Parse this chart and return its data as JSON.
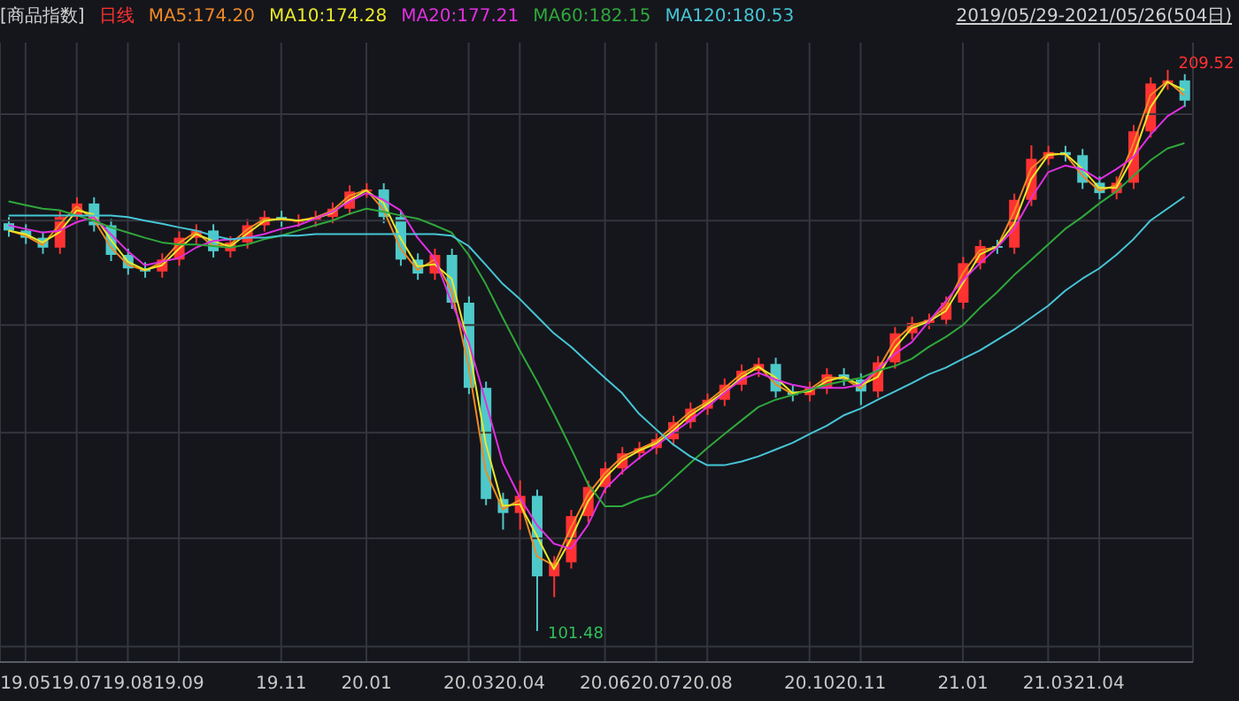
{
  "chart_data": {
    "type": "candlestick",
    "title": "[商品指数]",
    "annotations": [
      "2019/05/29-2021/05/26(504日)"
    ],
    "categories": [
      null,
      "19.05",
      null,
      null,
      "19.07",
      null,
      null,
      "19.08",
      null,
      null,
      "19.09",
      null,
      null,
      null,
      null,
      null,
      "19.11",
      null,
      null,
      null,
      null,
      "20.01",
      null,
      null,
      null,
      null,
      null,
      "20.03",
      null,
      null,
      "20.04",
      null,
      null,
      null,
      null,
      "20.06",
      null,
      null,
      "20.07",
      null,
      null,
      "20.08",
      null,
      null,
      null,
      null,
      null,
      "20.10",
      null,
      null,
      "20.11",
      null,
      null,
      null,
      null,
      null,
      "21.01",
      null,
      null,
      null,
      null,
      "21.03",
      null,
      null,
      "21.04",
      null,
      null,
      null,
      null,
      null
    ],
    "ylim": [
      95.5,
      214.8
    ],
    "yticks": [
      {
        "value": 98.5,
        "label": null
      },
      {
        "value": 119.3,
        "label": null
      },
      {
        "value": 139.7,
        "label": null
      },
      {
        "value": 160.4,
        "label": null
      },
      {
        "value": 180.5,
        "label": null
      },
      {
        "value": 201.0,
        "label": null
      }
    ],
    "tick_labels": "x",
    "grid": true,
    "legend": "top left",
    "series": [
      {
        "type": "candlestick",
        "name": "日线",
        "color": "#ff3232",
        "value_labels": [
          null,
          null,
          null,
          null,
          null,
          null,
          null,
          null,
          null,
          null,
          null,
          null,
          null,
          null,
          null,
          null,
          null,
          null,
          null,
          null,
          null,
          null,
          null,
          null,
          null,
          null,
          null,
          null,
          null,
          null,
          null,
          "101.48",
          null,
          null,
          null,
          null,
          null,
          null,
          null,
          null,
          null,
          null,
          null,
          null,
          null,
          null,
          null,
          null,
          null,
          null,
          null,
          null,
          null,
          null,
          null,
          null,
          null,
          null,
          null,
          null,
          null,
          null,
          null,
          null,
          null,
          null,
          null,
          null,
          "209.52",
          null
        ],
        "colors": [
          "#4ec9c9",
          "#4ec9c9",
          "#4ec9c9",
          "#ff3232",
          "#ff3232",
          "#4ec9c9",
          "#4ec9c9",
          "#4ec9c9",
          "#4ec9c9",
          "#ff3232",
          "#ff3232",
          "#ff3232",
          "#4ec9c9",
          "#ff3232",
          "#ff3232",
          "#ff3232",
          "#4ec9c9",
          "#ff3232",
          "#ff3232",
          "#ff3232",
          "#ff3232",
          "#ff3232",
          "#4ec9c9",
          "#4ec9c9",
          "#4ec9c9",
          "#ff3232",
          "#4ec9c9",
          "#4ec9c9",
          "#4ec9c9",
          "#4ec9c9",
          "#ff3232",
          "#4ec9c9",
          "#ff3232",
          "#ff3232",
          "#ff3232",
          "#ff3232",
          "#ff3232",
          "#ff3232",
          "#ff3232",
          "#ff3232",
          "#ff3232",
          "#ff3232",
          "#ff3232",
          "#ff3232",
          "#ff3232",
          "#4ec9c9",
          "#4ec9c9",
          "#ff3232",
          "#ff3232",
          "#4ec9c9",
          "#4ec9c9",
          "#ff3232",
          "#ff3232",
          "#ff3232",
          "#ff3232",
          "#ff3232",
          "#ff3232",
          "#ff3232",
          "#4ec9c9",
          "#ff3232",
          "#ff3232",
          "#ff3232",
          "#4ec9c9",
          "#4ec9c9",
          "#4ec9c9",
          "#ff3232",
          "#ff3232",
          "#ff3232",
          "#ff3232",
          "#4ec9c9"
        ],
        "ohlc": [
          [
            180.0,
            181.2,
            177.4,
            178.6
          ],
          [
            178.6,
            179.8,
            176.0,
            177.2
          ],
          [
            177.2,
            178.4,
            174.1,
            175.3
          ],
          [
            175.3,
            182.4,
            174.1,
            181.2
          ],
          [
            181.2,
            185.0,
            180.0,
            183.8
          ],
          [
            183.8,
            185.0,
            178.4,
            179.6
          ],
          [
            179.6,
            180.8,
            172.7,
            173.9
          ],
          [
            173.9,
            175.1,
            170.1,
            171.3
          ],
          [
            171.3,
            172.5,
            169.5,
            170.7
          ],
          [
            170.7,
            174.2,
            169.5,
            173.0
          ],
          [
            173.0,
            178.4,
            171.8,
            177.2
          ],
          [
            177.2,
            179.8,
            176.0,
            178.6
          ],
          [
            178.6,
            179.8,
            173.4,
            174.6
          ],
          [
            174.6,
            177.5,
            173.4,
            176.3
          ],
          [
            176.3,
            180.8,
            175.1,
            179.6
          ],
          [
            179.6,
            182.4,
            178.4,
            181.2
          ],
          [
            181.2,
            182.4,
            179.3,
            180.5
          ],
          [
            180.5,
            181.7,
            179.3,
            180.5
          ],
          [
            180.5,
            182.4,
            179.3,
            181.2
          ],
          [
            181.2,
            184.0,
            180.0,
            182.8
          ],
          [
            182.8,
            187.3,
            181.6,
            186.1
          ],
          [
            186.1,
            187.7,
            184.9,
            186.5
          ],
          [
            186.5,
            187.7,
            180.0,
            181.2
          ],
          [
            181.2,
            182.4,
            171.8,
            173.0
          ],
          [
            173.0,
            174.2,
            169.1,
            170.3
          ],
          [
            170.3,
            175.1,
            169.1,
            173.9
          ],
          [
            173.9,
            175.1,
            163.5,
            164.7
          ],
          [
            164.7,
            165.9,
            147.1,
            148.3
          ],
          [
            148.3,
            149.5,
            125.7,
            126.9
          ],
          [
            126.9,
            128.1,
            121.0,
            124.2
          ],
          [
            124.2,
            130.5,
            121.0,
            127.5
          ],
          [
            127.5,
            128.7,
            101.48,
            112.0
          ],
          [
            112.0,
            115.9,
            108.0,
            114.7
          ],
          [
            114.7,
            124.8,
            113.5,
            123.6
          ],
          [
            123.6,
            130.4,
            122.4,
            129.2
          ],
          [
            129.2,
            134.0,
            128.0,
            132.8
          ],
          [
            132.8,
            136.9,
            131.6,
            135.7
          ],
          [
            135.7,
            137.9,
            134.5,
            136.7
          ],
          [
            136.7,
            139.6,
            135.5,
            138.4
          ],
          [
            138.4,
            142.9,
            137.2,
            141.7
          ],
          [
            141.7,
            145.5,
            140.5,
            144.3
          ],
          [
            144.3,
            147.2,
            143.1,
            146.0
          ],
          [
            146.0,
            150.1,
            144.8,
            148.9
          ],
          [
            148.9,
            152.8,
            147.7,
            151.6
          ],
          [
            151.6,
            154.1,
            150.4,
            152.9
          ],
          [
            152.9,
            154.1,
            146.4,
            147.6
          ],
          [
            147.6,
            148.8,
            145.7,
            146.9
          ],
          [
            146.9,
            149.5,
            145.7,
            148.3
          ],
          [
            148.3,
            152.1,
            147.1,
            150.9
          ],
          [
            150.9,
            152.1,
            148.7,
            149.9
          ],
          [
            149.9,
            151.1,
            145.0,
            147.6
          ],
          [
            147.6,
            154.4,
            146.4,
            153.2
          ],
          [
            153.2,
            160.0,
            152.0,
            158.8
          ],
          [
            158.8,
            162.0,
            157.6,
            160.8
          ],
          [
            160.8,
            162.6,
            159.6,
            161.4
          ],
          [
            161.4,
            165.9,
            160.2,
            164.7
          ],
          [
            164.7,
            173.5,
            163.5,
            172.3
          ],
          [
            172.3,
            176.8,
            171.1,
            175.6
          ],
          [
            175.6,
            176.8,
            174.1,
            175.3
          ],
          [
            175.3,
            185.7,
            174.1,
            184.5
          ],
          [
            184.5,
            195.0,
            183.3,
            192.4
          ],
          [
            192.4,
            194.9,
            191.2,
            193.7
          ],
          [
            193.7,
            194.9,
            191.9,
            193.1
          ],
          [
            193.1,
            194.3,
            186.6,
            187.8
          ],
          [
            187.8,
            189.0,
            184.6,
            185.8
          ],
          [
            185.8,
            189.0,
            184.6,
            187.8
          ],
          [
            187.8,
            198.9,
            186.6,
            197.7
          ],
          [
            197.7,
            208.1,
            196.5,
            206.9
          ],
          [
            206.9,
            209.52,
            205.7,
            207.5
          ],
          [
            207.5,
            208.7,
            202.4,
            203.6
          ]
        ]
      },
      {
        "type": "line",
        "name": "MA5:174.20",
        "color": "#f08a24",
        "values": [
          178.6,
          177.6,
          175.8,
          179.8,
          183.2,
          180.7,
          175.4,
          172.0,
          170.9,
          172.5,
          176.2,
          178.3,
          175.6,
          175.9,
          178.8,
          180.8,
          180.7,
          180.5,
          181.1,
          182.4,
          185.3,
          186.4,
          182.6,
          175.1,
          171.0,
          173.0,
          167.0,
          152.4,
          132.3,
          124.9,
          126.7,
          115.9,
          114.1,
          121.4,
          127.8,
          131.9,
          135.0,
          136.5,
          138.0,
          140.9,
          143.7,
          145.6,
          148.2,
          151.0,
          152.6,
          149.0,
          147.1,
          148.0,
          150.3,
          150.2,
          148.2,
          151.8,
          157.4,
          160.3,
          161.3,
          163.9,
          170.4,
          174.8,
          175.4,
          182.2,
          190.5,
          193.4,
          193.3,
          189.2,
          186.3,
          187.3,
          195.3,
          204.6,
          207.4,
          204.6
        ]
      },
      {
        "type": "line",
        "name": "MA10:174.28",
        "color": "#e8e82a",
        "values": [
          178.6,
          177.9,
          176.3,
          178.3,
          182.5,
          181.7,
          176.8,
          172.6,
          171.0,
          171.9,
          175.1,
          177.9,
          176.6,
          175.5,
          178.0,
          180.4,
          180.9,
          180.5,
          180.9,
          182.0,
          184.5,
          186.3,
          183.9,
          177.1,
          171.7,
          172.1,
          169.3,
          156.5,
          137.6,
          125.6,
          125.9,
          119.8,
          113.4,
          119.2,
          126.4,
          131.0,
          134.3,
          136.2,
          137.6,
          140.1,
          143.0,
          145.2,
          147.5,
          150.3,
          152.3,
          150.3,
          147.3,
          147.6,
          149.6,
          150.4,
          148.8,
          150.4,
          156.0,
          159.8,
          161.1,
          163.1,
          168.5,
          174.0,
          175.5,
          179.9,
          188.5,
          193.1,
          193.4,
          190.5,
          186.8,
          186.8,
          192.8,
          202.3,
          207.2,
          205.6
        ]
      },
      {
        "type": "line",
        "name": "MA20:177.21",
        "color": "#e030e0",
        "values": [
          179.6,
          178.9,
          178.2,
          178.6,
          180.2,
          181.2,
          177.9,
          174.6,
          171.9,
          172.6,
          173.3,
          175.3,
          176.6,
          176.9,
          177.2,
          177.9,
          178.9,
          179.6,
          180.9,
          182.2,
          184.2,
          185.8,
          184.5,
          182.5,
          177.2,
          173.3,
          164.7,
          157.1,
          145.6,
          133.8,
          127.2,
          121.9,
          118.3,
          117.3,
          121.9,
          128.8,
          132.1,
          134.8,
          137.1,
          139.7,
          142.0,
          144.6,
          147.3,
          149.9,
          151.2,
          149.9,
          148.9,
          148.3,
          148.3,
          148.3,
          148.9,
          151.9,
          154.8,
          157.1,
          161.1,
          165.0,
          169.0,
          172.3,
          175.3,
          178.9,
          184.8,
          189.8,
          191.1,
          190.4,
          188.4,
          190.4,
          192.7,
          197.0,
          200.6,
          202.6
        ]
      },
      {
        "type": "line",
        "name": "MA60:182.15",
        "color": "#2fa83a",
        "values": [
          184.2,
          183.5,
          182.8,
          182.5,
          181.5,
          180.5,
          179.2,
          178.2,
          177.2,
          176.3,
          175.9,
          175.9,
          175.6,
          175.3,
          175.9,
          176.9,
          177.6,
          178.6,
          179.6,
          180.5,
          181.8,
          182.8,
          182.2,
          181.5,
          180.9,
          179.6,
          178.2,
          173.9,
          168.3,
          161.8,
          155.5,
          149.6,
          143.3,
          136.7,
          129.8,
          125.5,
          125.5,
          126.9,
          127.8,
          130.8,
          133.8,
          136.7,
          139.4,
          142.0,
          144.6,
          146.0,
          146.9,
          147.9,
          148.9,
          149.6,
          150.2,
          151.6,
          152.5,
          153.9,
          156.2,
          158.1,
          160.4,
          163.7,
          166.7,
          170.0,
          172.9,
          175.9,
          178.9,
          181.2,
          183.8,
          186.1,
          189.1,
          192.1,
          194.4,
          195.4
        ]
      },
      {
        "type": "line",
        "name": "MA120:180.53",
        "color": "#46c6d6",
        "values": [
          181.5,
          181.5,
          181.5,
          181.5,
          181.5,
          181.5,
          181.5,
          181.2,
          180.5,
          179.9,
          179.2,
          178.6,
          177.6,
          176.9,
          177.2,
          177.2,
          177.6,
          177.6,
          177.9,
          177.9,
          177.9,
          177.9,
          177.9,
          177.9,
          177.9,
          177.9,
          177.6,
          175.6,
          172.0,
          168.3,
          165.4,
          162.1,
          158.8,
          156.2,
          153.2,
          150.2,
          147.3,
          143.3,
          140.3,
          137.4,
          135.1,
          133.4,
          133.4,
          134.1,
          135.1,
          136.4,
          137.7,
          139.4,
          141.0,
          143.0,
          144.3,
          146.0,
          147.6,
          149.2,
          150.9,
          152.2,
          153.9,
          155.5,
          157.5,
          159.5,
          161.8,
          164.1,
          167.0,
          169.3,
          171.3,
          173.9,
          176.9,
          180.5,
          182.8,
          185.1
        ]
      }
    ]
  }
}
